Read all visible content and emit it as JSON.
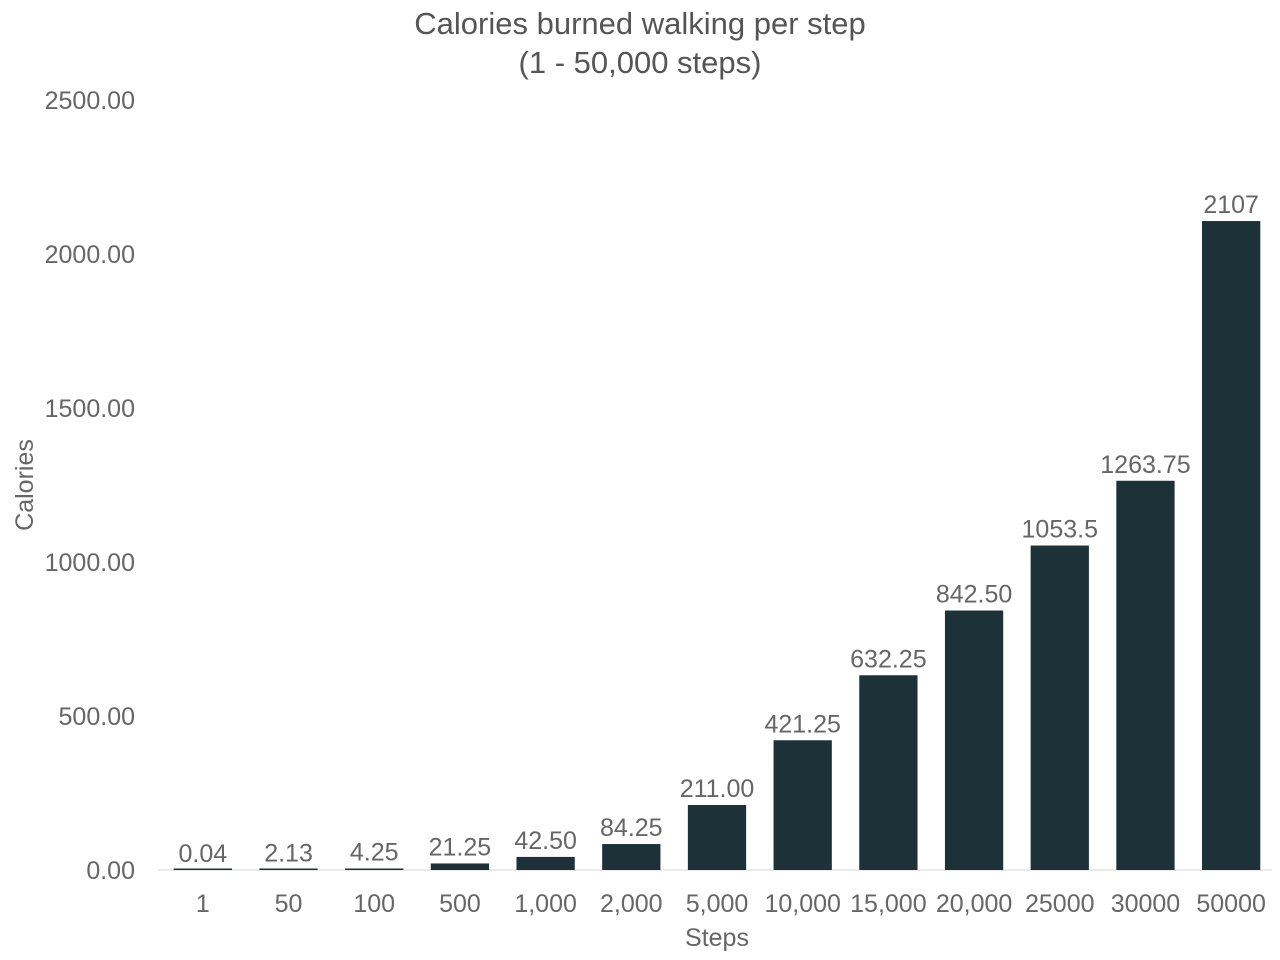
{
  "chart_data": {
    "type": "bar",
    "title_lines": [
      "Calories burned walking per step",
      "(1 - 50,000 steps)"
    ],
    "xlabel": "Steps",
    "ylabel": "Calories",
    "categories": [
      "1",
      "50",
      "100",
      "500",
      "1,000",
      "2,000",
      "5,000",
      "10,000",
      "15,000",
      "20,000",
      "25000",
      "30000",
      "50000"
    ],
    "values": [
      0.04,
      2.13,
      4.25,
      21.25,
      42.5,
      84.25,
      211.0,
      421.25,
      632.25,
      842.5,
      1053.5,
      1263.75,
      2107
    ],
    "value_labels": [
      "0.04",
      "2.13",
      "4.25",
      "21.25",
      "42.50",
      "84.25",
      "211.00",
      "421.25",
      "632.25",
      "842.50",
      "1053.5",
      "1263.75",
      "2107"
    ],
    "yticks": [
      0,
      500,
      1000,
      1500,
      2000,
      2500
    ],
    "ytick_labels": [
      "0.00",
      "500.00",
      "1000.00",
      "1500.00",
      "2000.00",
      "2500.00"
    ],
    "ylim": [
      0,
      2500
    ],
    "grid": false,
    "legend": "none",
    "colors": {
      "bar": "#1c3238",
      "text": "#666666",
      "axis_line": "#e3e3e3"
    }
  }
}
